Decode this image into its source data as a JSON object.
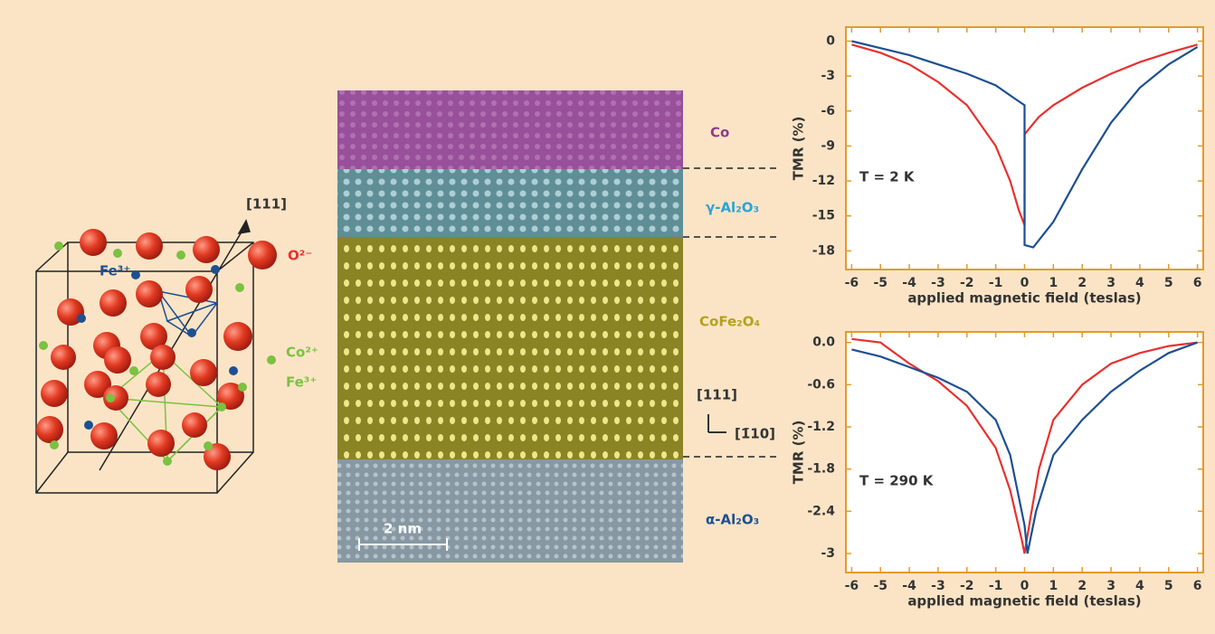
{
  "chart_data": [
    {
      "type": "line",
      "ylabel": "TMR (%)",
      "xlabel": "applied magnetic field (teslas)",
      "annotation": "T = 2 K",
      "xlim": [
        -6.2,
        6.2
      ],
      "xticks": [
        -6,
        -5,
        -4,
        -3,
        -2,
        -1,
        0,
        1,
        2,
        3,
        4,
        5,
        6
      ],
      "ylim": [
        -19.6,
        1.2
      ],
      "yticks": [
        0,
        -3,
        -6,
        -9,
        -12,
        -15,
        -18
      ],
      "series": [
        {
          "color": "#e8312f",
          "x": [
            -6,
            -5,
            -4,
            -3,
            -2,
            -1,
            -0.5,
            -0.2,
            0,
            0,
            0.5,
            1,
            2,
            3,
            4,
            5,
            6
          ],
          "values": [
            -0.3,
            -1,
            -2,
            -3.5,
            -5.5,
            -9,
            -12,
            -14.5,
            -15.8,
            -8,
            -6.5,
            -5.5,
            -4,
            -2.8,
            -1.8,
            -1,
            -0.3
          ]
        },
        {
          "color": "#1d4f91",
          "x": [
            -6,
            -5,
            -4,
            -3,
            -2,
            -1,
            -0.3,
            0,
            0,
            0.3,
            1,
            2,
            3,
            4,
            5,
            6
          ],
          "values": [
            0,
            -0.6,
            -1.2,
            -2,
            -2.8,
            -3.8,
            -5,
            -5.5,
            -17.5,
            -17.7,
            -15.5,
            -11,
            -7,
            -4,
            -2,
            -0.5
          ]
        }
      ]
    },
    {
      "type": "line",
      "ylabel": "TMR (%)",
      "xlabel": "applied magnetic field (teslas)",
      "annotation": "T = 290 K",
      "xlim": [
        -6.2,
        6.2
      ],
      "xticks": [
        -6,
        -5,
        -4,
        -3,
        -2,
        -1,
        0,
        1,
        2,
        3,
        4,
        5,
        6
      ],
      "ylim": [
        -3.27,
        0.15
      ],
      "yticks": [
        {
          "value": 0,
          "label": "0.0"
        },
        -0.6,
        -1.2,
        -1.8,
        -2.4,
        -3
      ],
      "series": [
        {
          "color": "#e8312f",
          "x": [
            -6,
            -5,
            -4,
            -3,
            -2,
            -1,
            -0.5,
            -0.1,
            0,
            0.2,
            0.5,
            1,
            2,
            3,
            4,
            5,
            6
          ],
          "values": [
            0.05,
            0,
            -0.3,
            -0.55,
            -0.9,
            -1.5,
            -2.1,
            -2.8,
            -3,
            -2.5,
            -1.8,
            -1.1,
            -0.6,
            -0.3,
            -0.15,
            -0.05,
            0
          ]
        },
        {
          "color": "#1d4f91",
          "x": [
            -6,
            -5,
            -4,
            -3,
            -2,
            -1,
            -0.5,
            0,
            0.1,
            0.4,
            1,
            2,
            3,
            4,
            5,
            6
          ],
          "values": [
            -0.1,
            -0.2,
            -0.35,
            -0.5,
            -0.7,
            -1.1,
            -1.6,
            -2.6,
            -3,
            -2.4,
            -1.6,
            -1.1,
            -0.7,
            -0.4,
            -0.15,
            0
          ]
        }
      ]
    }
  ],
  "crystal": {
    "direction": "[111]",
    "oxygen": "O²⁻",
    "iron_a": "Fe³⁺",
    "cobalt": "Co²⁺",
    "iron_b": "Fe³⁺"
  },
  "micrograph": {
    "layers": [
      "Co",
      "γ-Al₂O₃",
      "CoFe₂O₄",
      "α-Al₂O₃"
    ],
    "axis_up": "[111]",
    "axis_side": "[1̄10]",
    "scale": "2 nm"
  }
}
